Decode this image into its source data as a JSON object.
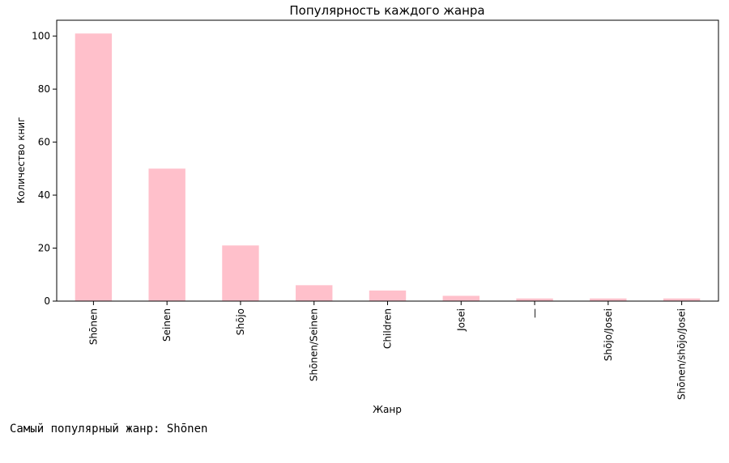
{
  "chart_data": {
    "type": "bar",
    "title": "Популярность каждого жанра",
    "xlabel": "Жанр",
    "ylabel": "Количество книг",
    "categories": [
      "Shōnen",
      "Seinen",
      "Shōjo",
      "Shōnen/Seinen",
      "Children",
      "Josei",
      "—",
      "Shōjo/Josei",
      "Shōnen/shōjo/Josei"
    ],
    "values": [
      101,
      50,
      21,
      6,
      4,
      2,
      1,
      1,
      1
    ],
    "ylim": [
      0,
      106
    ],
    "yticks": [
      0,
      20,
      40,
      60,
      80,
      100
    ],
    "bar_color": "#ffc0cb",
    "grid": false
  },
  "output": {
    "text": "Самый популярный жанр: Shōnen"
  }
}
